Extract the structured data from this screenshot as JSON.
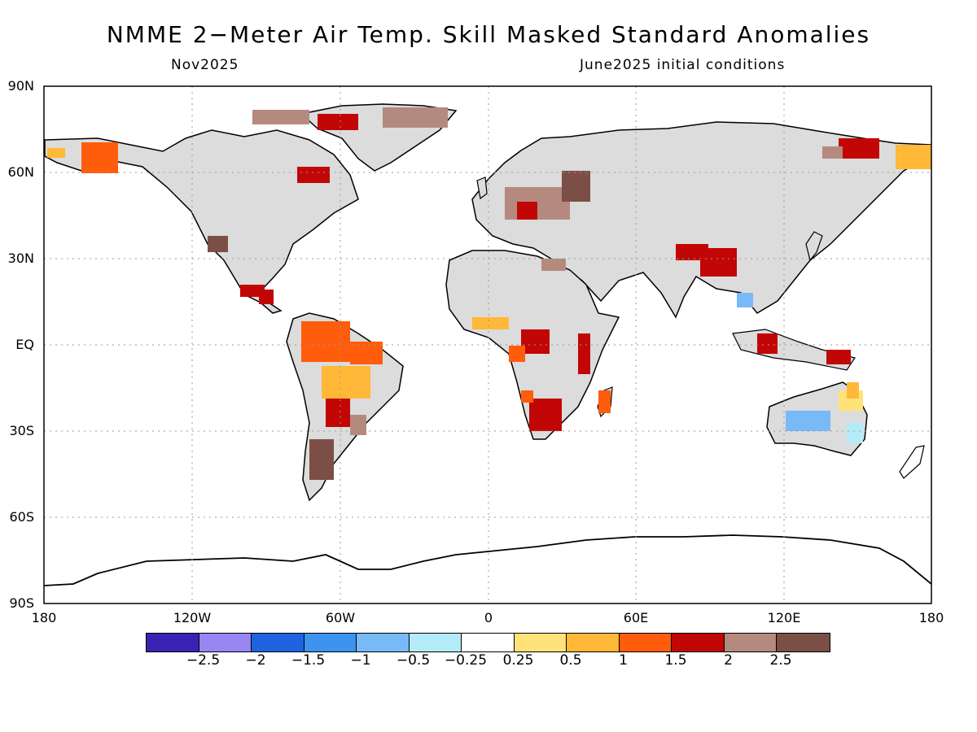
{
  "title": "NMME 2−Meter Air Temp. Skill Masked Standard Anomalies",
  "subtitle_left": "Nov2025",
  "subtitle_right": "June2025 initial conditions",
  "lat_labels": [
    "90N",
    "60N",
    "30N",
    "EQ",
    "30S",
    "60S",
    "90S"
  ],
  "lon_labels": [
    "180",
    "120W",
    "60W",
    "0",
    "60E",
    "120E",
    "180"
  ],
  "colorbar": {
    "colors": [
      "#3b22b3",
      "#9a86f2",
      "#1e64e0",
      "#3c94ee",
      "#78b9f8",
      "#b3ecf8",
      "#ffffff",
      "#ffe37a",
      "#ffb838",
      "#ff5c0b",
      "#c20606",
      "#b48a7f",
      "#7b4f45"
    ],
    "tick_labels": [
      "−2.5",
      "−2",
      "−1.5",
      "−1",
      "−0.5",
      "−0.25",
      "0.25",
      "0.5",
      "1",
      "1.5",
      "2",
      "2.5"
    ]
  },
  "map": {
    "land_color": "#e0e0e0",
    "grid": "dotted"
  }
}
